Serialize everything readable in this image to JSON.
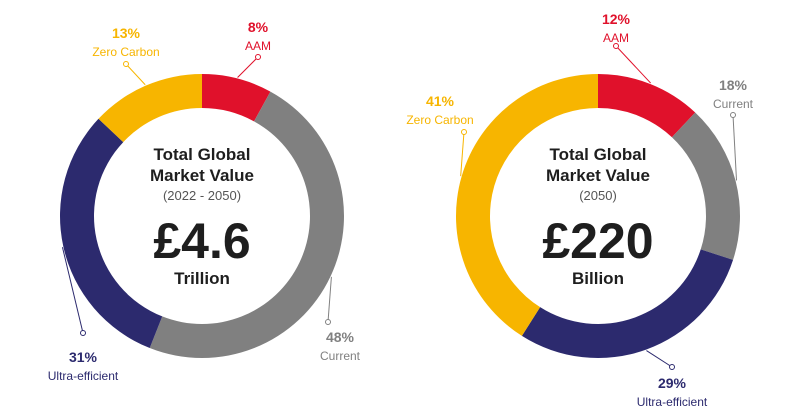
{
  "chart_data": [
    {
      "type": "pie",
      "center": {
        "title_line1": "Total Global",
        "title_line2": "Market Value",
        "period": "(2022 - 2050)",
        "value": "£4.6",
        "unit": "Trillion"
      },
      "slices": [
        {
          "name": "AAM",
          "value": 8,
          "label": "8%",
          "color": "#e0112b"
        },
        {
          "name": "Current",
          "value": 48,
          "label": "48%",
          "color": "#808080"
        },
        {
          "name": "Ultra-efficient",
          "value": 31,
          "label": "31%",
          "color": "#2c2a6e"
        },
        {
          "name": "Zero Carbon",
          "value": 13,
          "label": "13%",
          "color": "#f7b500"
        }
      ]
    },
    {
      "type": "pie",
      "center": {
        "title_line1": "Total Global",
        "title_line2": "Market Value",
        "period": "(2050)",
        "value": "£220",
        "unit": "Billion"
      },
      "slices": [
        {
          "name": "AAM",
          "value": 12,
          "label": "12%",
          "color": "#e0112b"
        },
        {
          "name": "Current",
          "value": 18,
          "label": "18%",
          "color": "#808080"
        },
        {
          "name": "Ultra-efficient",
          "value": 29,
          "label": "29%",
          "color": "#2c2a6e"
        },
        {
          "name": "Zero Carbon",
          "value": 41,
          "label": "41%",
          "color": "#f7b500"
        }
      ]
    }
  ]
}
